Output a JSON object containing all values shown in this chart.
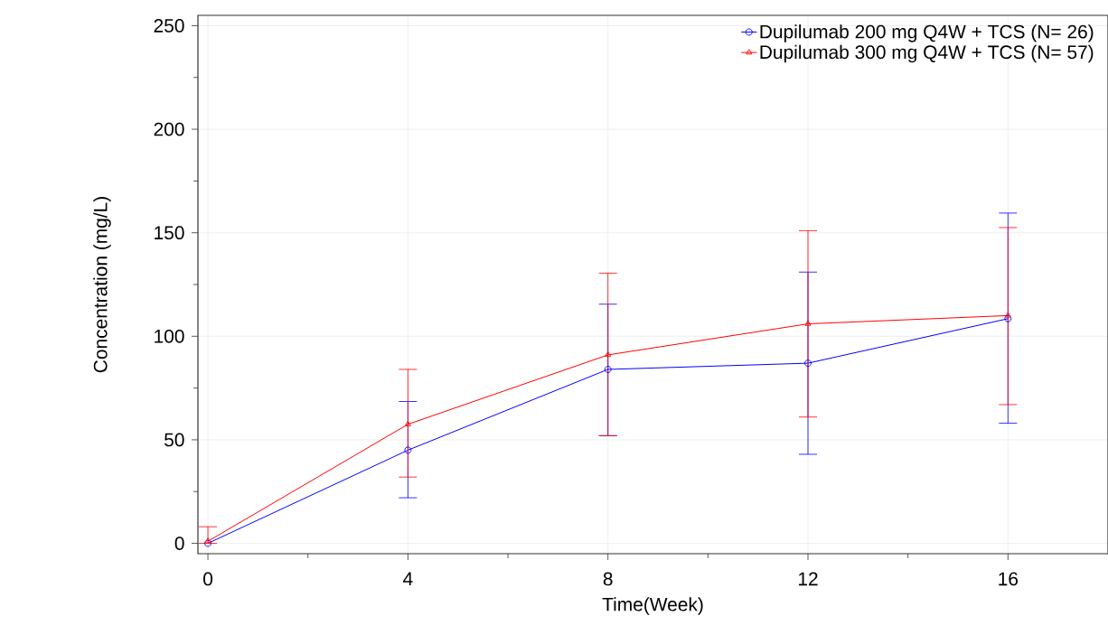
{
  "chart_data": {
    "type": "line",
    "xlabel": "Time(Week)",
    "ylabel": "Concentration (mg/L)",
    "x": [
      0,
      4,
      8,
      12,
      16
    ],
    "xlim": [
      -0.2,
      18
    ],
    "ylim": [
      -5,
      255
    ],
    "xticks": [
      0,
      {
        "value": 2,
        "label": null
      },
      4,
      {
        "value": 6,
        "label": null
      },
      8,
      {
        "value": 10,
        "label": null
      },
      12,
      {
        "value": 14,
        "label": null
      },
      16
    ],
    "yticks": [
      0,
      {
        "value": 25,
        "label": null
      },
      50,
      {
        "value": 75,
        "label": null
      },
      100,
      {
        "value": 125,
        "label": null
      },
      150,
      {
        "value": 175,
        "label": null
      },
      200,
      {
        "value": 225,
        "label": null
      },
      250
    ],
    "grid": true,
    "legend": "top right",
    "line_style": "solid",
    "series": [
      {
        "name": "Dupilumab 200 mg Q4W + TCS (N= 26)",
        "color": "#0000ff",
        "marker": "circle",
        "values": [
          0,
          45,
          84,
          87,
          108.5
        ],
        "errors": [
          null,
          [
            22,
            68.5
          ],
          [
            52,
            115.5
          ],
          [
            43,
            131
          ],
          [
            58,
            159.5
          ]
        ]
      },
      {
        "name": "Dupilumab 300 mg Q4W + TCS (N= 57)",
        "color": "#ff0000",
        "marker": "triangle",
        "values": [
          1,
          57.5,
          91,
          106,
          110
        ],
        "errors": [
          [
            0,
            8
          ],
          [
            32,
            84
          ],
          [
            52,
            130.5
          ],
          [
            61,
            151
          ],
          [
            67,
            152.5
          ]
        ]
      }
    ]
  }
}
